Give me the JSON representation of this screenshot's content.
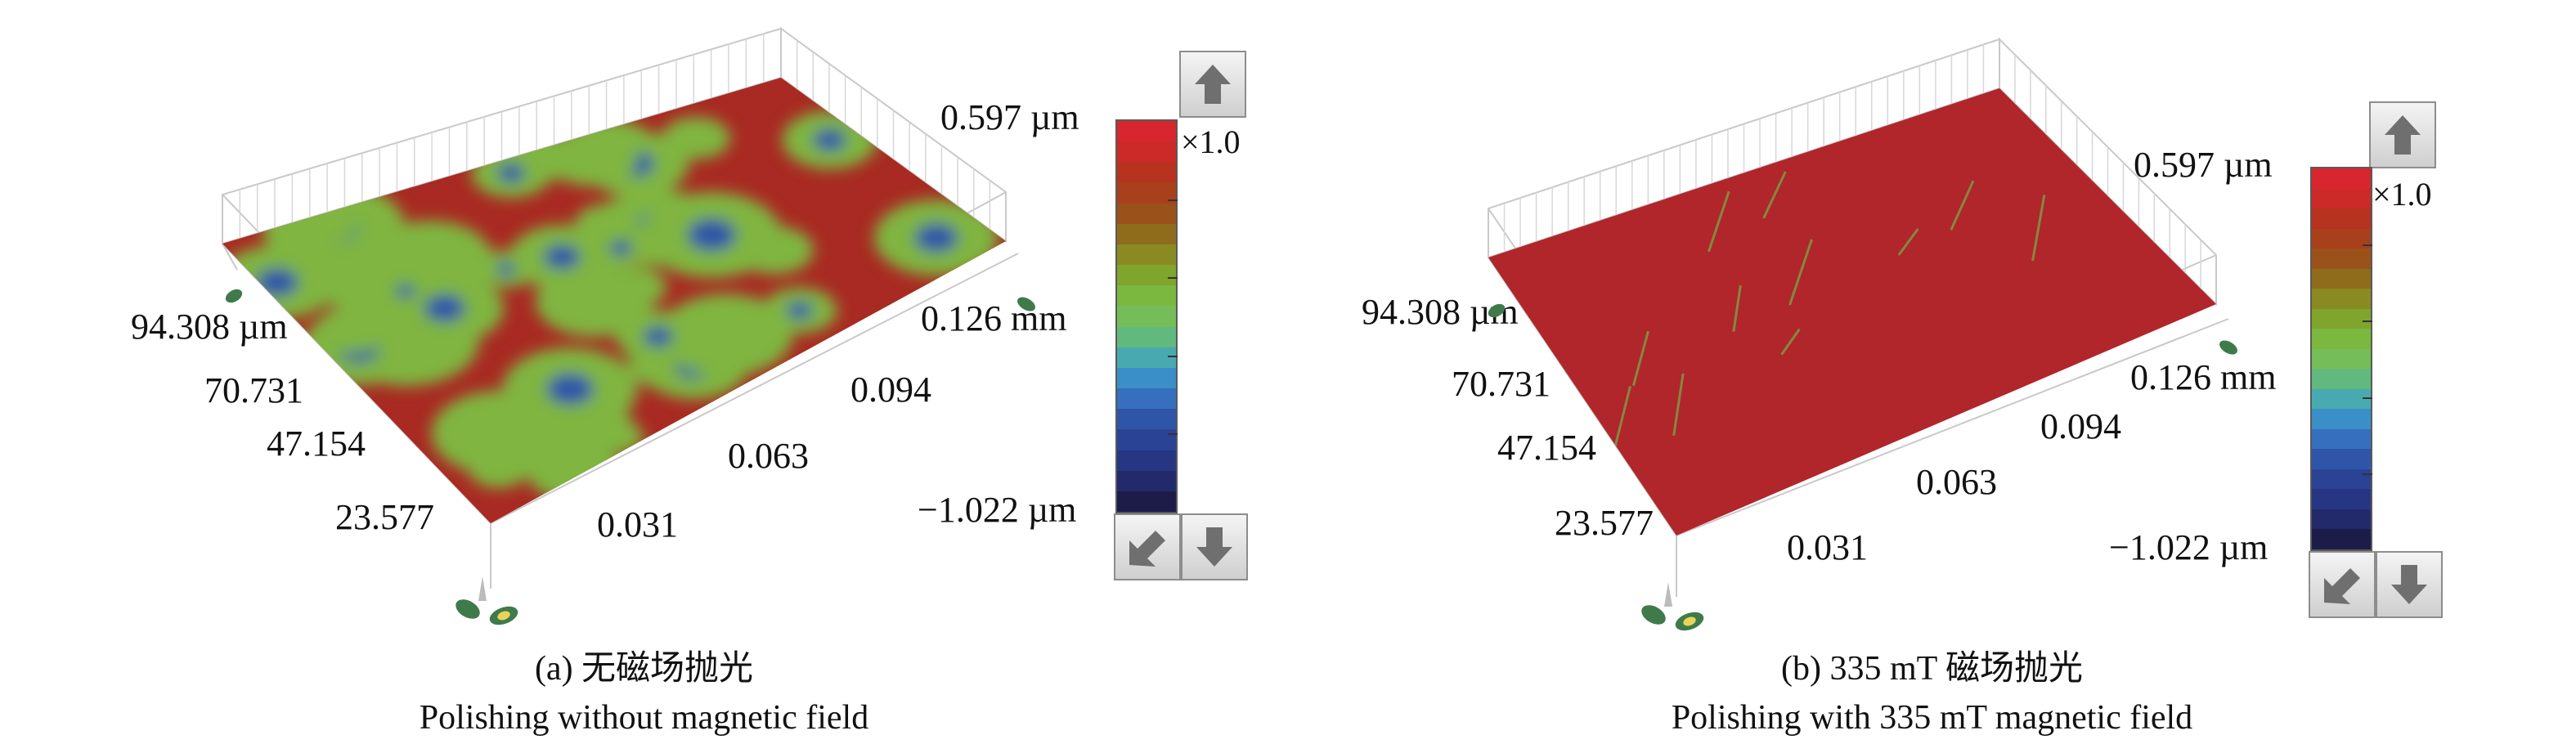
{
  "panels": [
    {
      "id": "a",
      "y_ticks": [
        "94.308 µm",
        "70.731",
        "47.154",
        "23.577"
      ],
      "x_ticks": [
        "0.126 mm",
        "0.094",
        "0.063",
        "0.031"
      ],
      "colorbar": {
        "max_label": "0.597 µm",
        "min_label": "−1.022 µm",
        "scale_label": "×1.0"
      },
      "caption_line1": "(a) 无磁场抛光",
      "caption_line2": "Polishing without magnetic field",
      "surface": "rough"
    },
    {
      "id": "b",
      "y_ticks": [
        "94.308 µm",
        "70.731",
        "47.154",
        "23.577"
      ],
      "x_ticks": [
        "0.126 mm",
        "0.094",
        "0.063",
        "0.031"
      ],
      "colorbar": {
        "max_label": "0.597 µm",
        "min_label": "−1.022 µm",
        "scale_label": "×1.0"
      },
      "caption_line1": "(b) 335 mT 磁场抛光",
      "caption_line2": "Polishing with 335 mT magnetic field",
      "surface": "smooth"
    }
  ],
  "colors": {
    "surface_base": "#a82a22",
    "surface_green": "#7fb541",
    "surface_blue": "#2e55a8",
    "colorbar_bands": [
      "#d8262e",
      "#cc2a28",
      "#b7321f",
      "#a8401c",
      "#9a521a",
      "#8f6b1c",
      "#8a8a22",
      "#7fa52d",
      "#7ab840",
      "#74bd58",
      "#62b97d",
      "#48aab0",
      "#3a8fc8",
      "#356fbd",
      "#2f55a8",
      "#2a4394",
      "#263682",
      "#222a6c",
      "#1d1c48"
    ]
  },
  "icons": [
    "arrow-up-icon",
    "arrow-down-left-icon",
    "arrow-down-icon",
    "axis-gizmo-icon"
  ]
}
